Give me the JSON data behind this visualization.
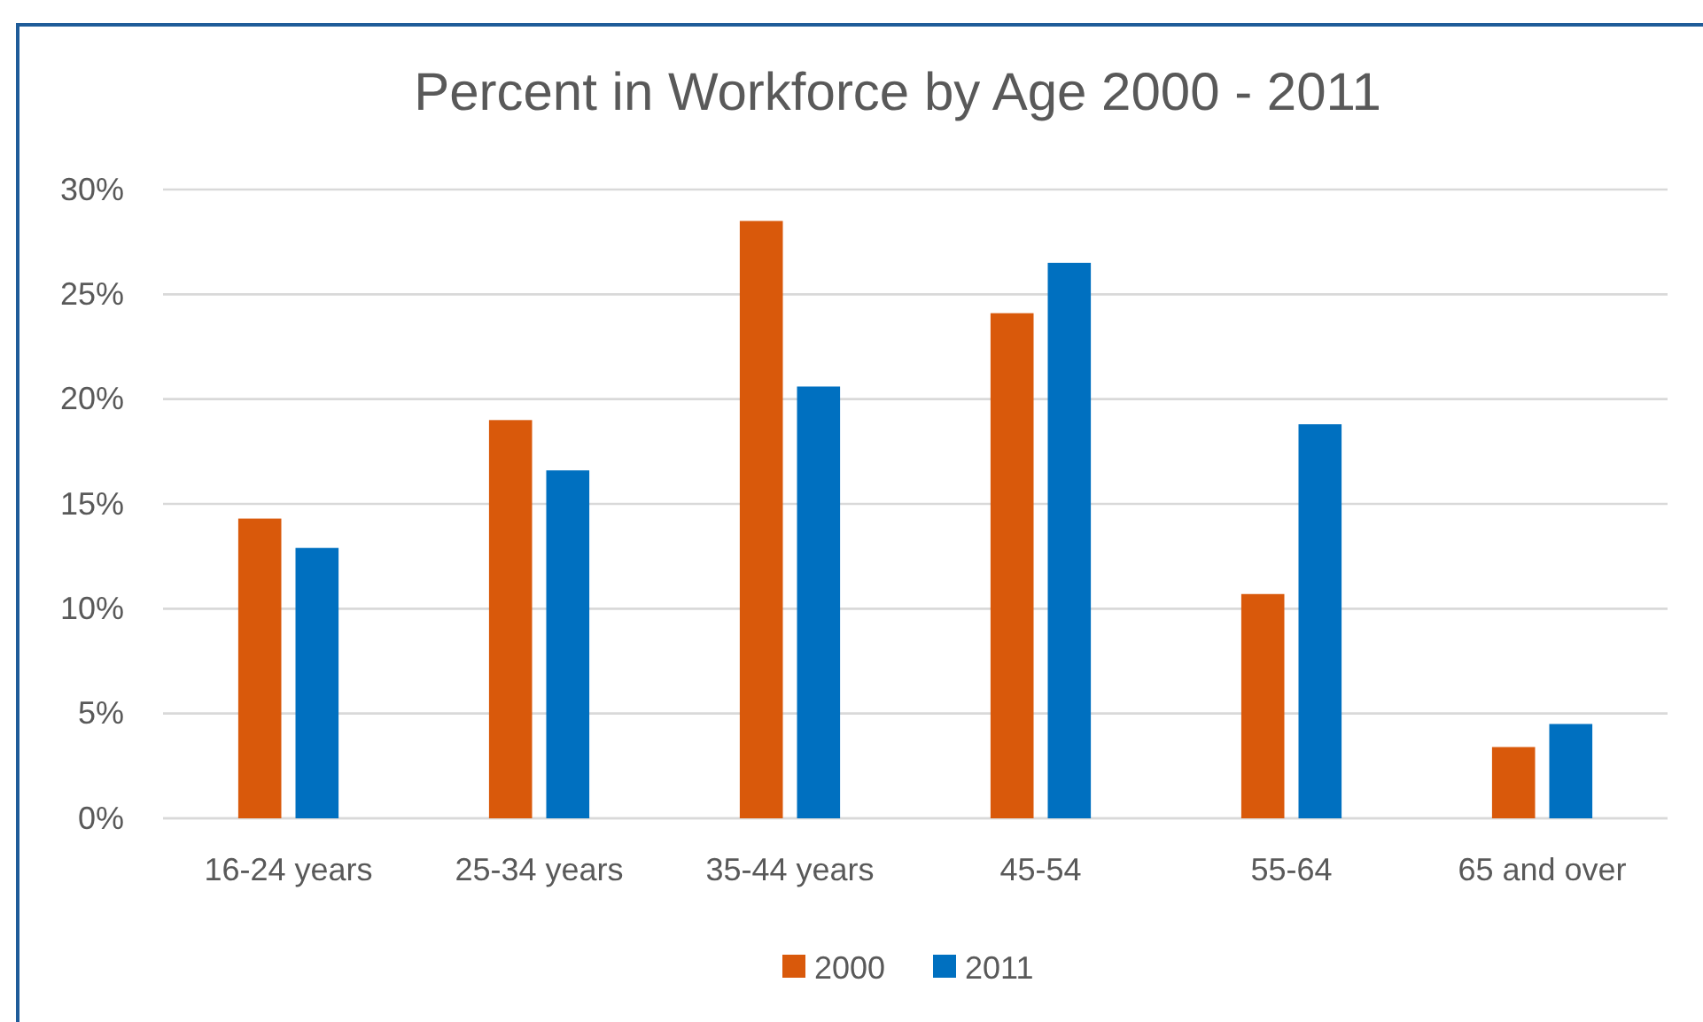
{
  "chart_data": {
    "type": "bar",
    "title": "Percent in Workforce by Age 2000 - 2011",
    "categories": [
      "16-24 years",
      "25-34 years",
      "35-44 years",
      "45-54",
      "55-64",
      "65 and over"
    ],
    "series": [
      {
        "name": "2000",
        "color": "#d9590b",
        "values": [
          14.3,
          19.0,
          28.5,
          24.1,
          10.7,
          3.4
        ]
      },
      {
        "name": "2011",
        "color": "#0070c0",
        "values": [
          12.9,
          16.6,
          20.6,
          26.5,
          18.8,
          4.5
        ]
      }
    ],
    "ylim": [
      0,
      30
    ],
    "yticks": [
      {
        "value": 0,
        "label": "0%"
      },
      {
        "value": 5,
        "label": "5%"
      },
      {
        "value": 10,
        "label": "10%"
      },
      {
        "value": 15,
        "label": "15%"
      },
      {
        "value": 20,
        "label": "20%"
      },
      {
        "value": 25,
        "label": "25%"
      },
      {
        "value": 30,
        "label": "30%"
      }
    ],
    "grid": "y",
    "legend": "bottom"
  }
}
